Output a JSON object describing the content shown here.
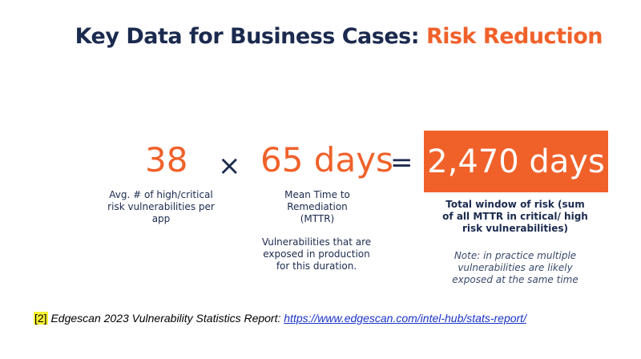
{
  "title": {
    "main": "Key Data for Business Cases: ",
    "accent": "Risk Reduction"
  },
  "equation": {
    "term1": {
      "value": "38",
      "description": "Avg. # of high/critical risk vulnerabilities per app"
    },
    "operator1": "×",
    "term2": {
      "value": "65 days",
      "description": "Mean Time to Remediation (MTTR)",
      "note": "Vulnerabilities that are exposed in production for this duration."
    },
    "operator2": "=",
    "result": {
      "value": "2,470 days",
      "description": "Total window of risk (sum of all MTTR in critical/ high risk vulnerabilities)",
      "note": "Note: in practice multiple vulnerabilities are likely exposed at the same time"
    }
  },
  "footer": {
    "ref_tag": "[2]",
    "source": " Edgescan  2023 Vulnerability Statistics Report: ",
    "link": "https://www.edgescan.com/intel-hub/stats-report/"
  },
  "colors": {
    "navy": "#1b2a4e",
    "orange": "#f0612a",
    "highlight": "#f7f233",
    "link": "#1a33c9"
  }
}
